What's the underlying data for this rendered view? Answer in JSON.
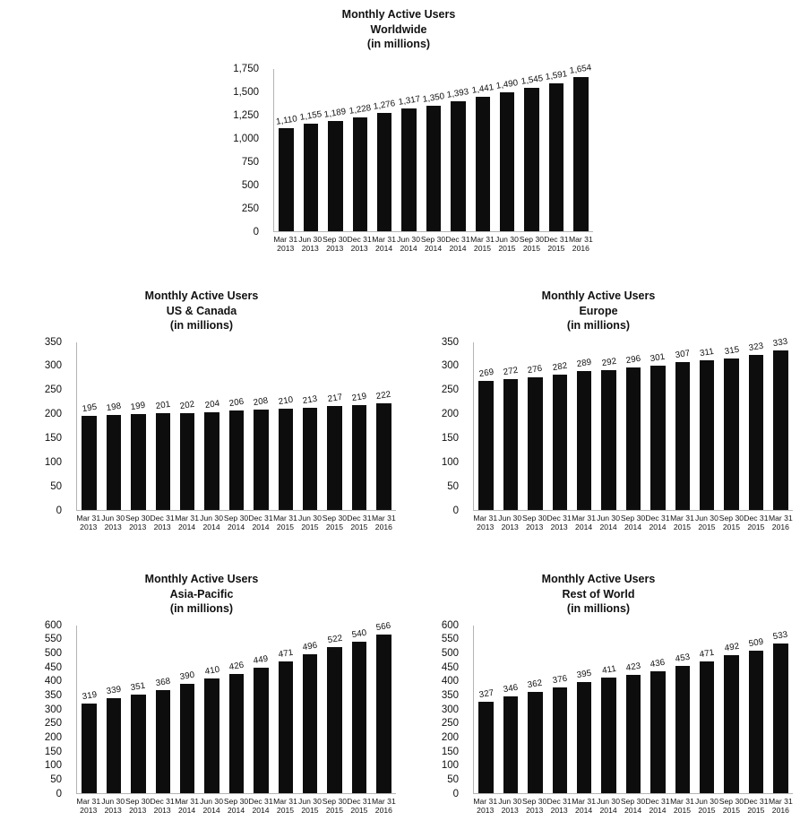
{
  "page": {
    "background": "#ffffff",
    "text_color": "#111111",
    "axis_line_color": "#b4b4b4",
    "bar_color": "#0d0d0d"
  },
  "chart_data": [
    {
      "type": "bar",
      "title": "Monthly Active Users",
      "subtitle": "Worldwide",
      "units_label": "(in millions)",
      "categories": [
        "Mar 31 2013",
        "Jun 30 2013",
        "Sep 30 2013",
        "Dec 31 2013",
        "Mar 31 2014",
        "Jun 30 2014",
        "Sep 30 2014",
        "Dec 31 2014",
        "Mar 31 2015",
        "Jun 30 2015",
        "Sep 30 2015",
        "Dec 31 2015",
        "Mar 31 2016"
      ],
      "values": [
        1110,
        1155,
        1189,
        1228,
        1276,
        1317,
        1350,
        1393,
        1441,
        1490,
        1545,
        1591,
        1654
      ],
      "value_labels": [
        "1,110",
        "1,155",
        "1,189",
        "1,228",
        "1,276",
        "1,317",
        "1,350",
        "1,393",
        "1,441",
        "1,490",
        "1,545",
        "1,591",
        "1,654"
      ],
      "xlabel": "",
      "ylabel": "",
      "ylim": [
        0,
        1750
      ],
      "ytick_step": 250,
      "ytick_labels": [
        "0",
        "250",
        "500",
        "750",
        "1,000",
        "1,250",
        "1,500",
        "1,750"
      ],
      "grid": false,
      "legend": "none",
      "bar_color": "#0d0d0d"
    },
    {
      "type": "bar",
      "title": "Monthly Active Users",
      "subtitle": "US & Canada",
      "units_label": "(in millions)",
      "categories": [
        "Mar 31 2013",
        "Jun 30 2013",
        "Sep 30 2013",
        "Dec 31 2013",
        "Mar 31 2014",
        "Jun 30 2014",
        "Sep 30 2014",
        "Dec 31 2014",
        "Mar 31 2015",
        "Jun 30 2015",
        "Sep 30 2015",
        "Dec 31 2015",
        "Mar 31 2016"
      ],
      "values": [
        195,
        198,
        199,
        201,
        202,
        204,
        206,
        208,
        210,
        213,
        217,
        219,
        222
      ],
      "value_labels": [
        "195",
        "198",
        "199",
        "201",
        "202",
        "204",
        "206",
        "208",
        "210",
        "213",
        "217",
        "219",
        "222"
      ],
      "xlabel": "",
      "ylabel": "",
      "ylim": [
        0,
        350
      ],
      "ytick_step": 50,
      "ytick_labels": [
        "0",
        "50",
        "100",
        "150",
        "200",
        "250",
        "300",
        "350"
      ],
      "grid": false,
      "legend": "none",
      "bar_color": "#0d0d0d"
    },
    {
      "type": "bar",
      "title": "Monthly Active Users",
      "subtitle": "Europe",
      "units_label": "(in millions)",
      "categories": [
        "Mar 31 2013",
        "Jun 30 2013",
        "Sep 30 2013",
        "Dec 31 2013",
        "Mar 31 2014",
        "Jun 30 2014",
        "Sep 30 2014",
        "Dec 31 2014",
        "Mar 31 2015",
        "Jun 30 2015",
        "Sep 30 2015",
        "Dec 31 2015",
        "Mar 31 2016"
      ],
      "values": [
        269,
        272,
        276,
        282,
        289,
        292,
        296,
        301,
        307,
        311,
        315,
        323,
        333
      ],
      "value_labels": [
        "269",
        "272",
        "276",
        "282",
        "289",
        "292",
        "296",
        "301",
        "307",
        "311",
        "315",
        "323",
        "333"
      ],
      "xlabel": "",
      "ylabel": "",
      "ylim": [
        0,
        350
      ],
      "ytick_step": 50,
      "ytick_labels": [
        "0",
        "50",
        "100",
        "150",
        "200",
        "250",
        "300",
        "350"
      ],
      "grid": false,
      "legend": "none",
      "bar_color": "#0d0d0d"
    },
    {
      "type": "bar",
      "title": "Monthly Active Users",
      "subtitle": "Asia-Pacific",
      "units_label": "(in millions)",
      "categories": [
        "Mar 31 2013",
        "Jun 30 2013",
        "Sep 30 2013",
        "Dec 31 2013",
        "Mar 31 2014",
        "Jun 30 2014",
        "Sep 30 2014",
        "Dec 31 2014",
        "Mar 31 2015",
        "Jun 30 2015",
        "Sep 30 2015",
        "Dec 31 2015",
        "Mar 31 2016"
      ],
      "values": [
        319,
        339,
        351,
        368,
        390,
        410,
        426,
        449,
        471,
        496,
        522,
        540,
        566
      ],
      "value_labels": [
        "319",
        "339",
        "351",
        "368",
        "390",
        "410",
        "426",
        "449",
        "471",
        "496",
        "522",
        "540",
        "566"
      ],
      "xlabel": "",
      "ylabel": "",
      "ylim": [
        0,
        600
      ],
      "ytick_step": 50,
      "ytick_labels": [
        "0",
        "50",
        "100",
        "150",
        "200",
        "250",
        "300",
        "350",
        "400",
        "450",
        "500",
        "550",
        "600"
      ],
      "grid": false,
      "legend": "none",
      "bar_color": "#0d0d0d"
    },
    {
      "type": "bar",
      "title": "Monthly Active Users",
      "subtitle": "Rest of World",
      "units_label": "(in millions)",
      "categories": [
        "Mar 31 2013",
        "Jun 30 2013",
        "Sep 30 2013",
        "Dec 31 2013",
        "Mar 31 2014",
        "Jun 30 2014",
        "Sep 30 2014",
        "Dec 31 2014",
        "Mar 31 2015",
        "Jun 30 2015",
        "Sep 30 2015",
        "Dec 31 2015",
        "Mar 31 2016"
      ],
      "values": [
        327,
        346,
        362,
        376,
        395,
        411,
        423,
        436,
        453,
        471,
        492,
        509,
        533
      ],
      "value_labels": [
        "327",
        "346",
        "362",
        "376",
        "395",
        "411",
        "423",
        "436",
        "453",
        "471",
        "492",
        "509",
        "533"
      ],
      "xlabel": "",
      "ylabel": "",
      "ylim": [
        0,
        600
      ],
      "ytick_step": 50,
      "ytick_labels": [
        "0",
        "50",
        "100",
        "150",
        "200",
        "250",
        "300",
        "350",
        "400",
        "450",
        "500",
        "550",
        "600"
      ],
      "grid": false,
      "legend": "none",
      "bar_color": "#0d0d0d"
    }
  ]
}
